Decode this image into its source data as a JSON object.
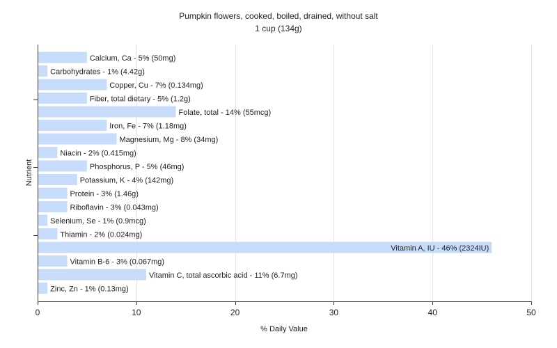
{
  "chart_data": {
    "type": "bar",
    "orientation": "horizontal",
    "title": "Pumpkin flowers, cooked, boiled, drained, without salt",
    "subtitle": "1 cup (134g)",
    "xlabel": "% Daily Value",
    "ylabel": "Nutrient",
    "xlim": [
      0,
      50
    ],
    "xticks": [
      0,
      10,
      20,
      30,
      40,
      50
    ],
    "grid": true,
    "colors": {
      "bar": "#c6dcfa",
      "grid": "#e4e4e4",
      "axis": "#333333"
    },
    "categories": [
      "Calcium, Ca",
      "Carbohydrates",
      "Copper, Cu",
      "Fiber, total dietary",
      "Folate, total",
      "Iron, Fe",
      "Magnesium, Mg",
      "Niacin",
      "Phosphorus, P",
      "Potassium, K",
      "Protein",
      "Riboflavin",
      "Selenium, Se",
      "Thiamin",
      "Vitamin A, IU",
      "Vitamin B-6",
      "Vitamin C, total ascorbic acid",
      "Zinc, Zn"
    ],
    "values": [
      5,
      1,
      7,
      5,
      14,
      7,
      8,
      2,
      5,
      4,
      3,
      3,
      1,
      2,
      46,
      3,
      11,
      1
    ],
    "labels": [
      "Calcium, Ca - 5% (50mg)",
      "Carbohydrates - 1% (4.42g)",
      "Copper, Cu - 7% (0.134mg)",
      "Fiber, total dietary - 5% (1.2g)",
      "Folate, total - 14% (55mcg)",
      "Iron, Fe - 7% (1.18mg)",
      "Magnesium, Mg - 8% (34mg)",
      "Niacin - 2% (0.415mg)",
      "Phosphorus, P - 5% (46mg)",
      "Potassium, K - 4% (142mg)",
      "Protein - 3% (1.46g)",
      "Riboflavin - 3% (0.043mg)",
      "Selenium, Se - 1% (0.9mcg)",
      "Thiamin - 2% (0.024mg)",
      "Vitamin A, IU - 46% (2324IU)",
      "Vitamin B-6 - 3% (0.067mg)",
      "Vitamin C, total ascorbic acid - 11% (6.7mg)",
      "Zinc, Zn - 1% (0.13mg)"
    ]
  }
}
